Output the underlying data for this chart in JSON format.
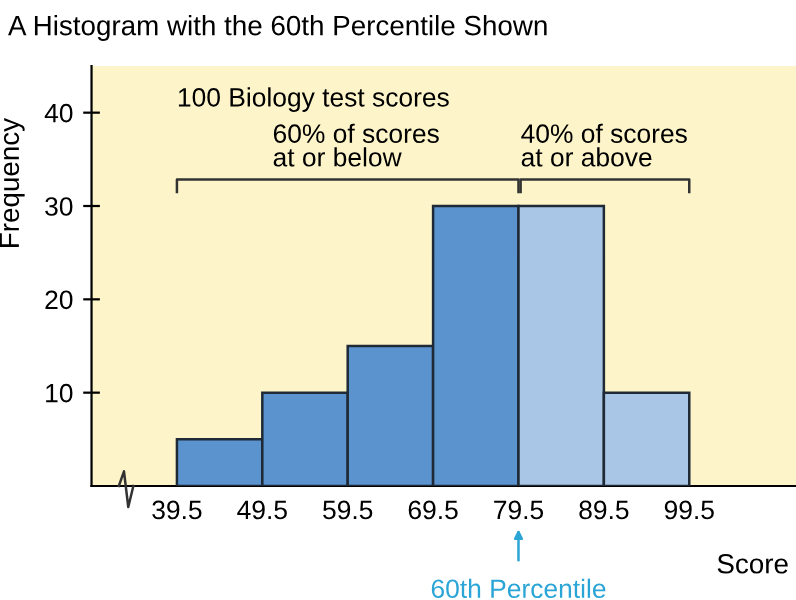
{
  "chart_data": {
    "type": "histogram",
    "title": "A Histogram with the 60th Percentile Shown",
    "xlabel": "Score",
    "ylabel": "Frequency",
    "bins": [
      39.5,
      49.5,
      59.5,
      69.5,
      79.5,
      89.5,
      99.5
    ],
    "values": [
      5,
      10,
      15,
      30,
      30,
      10
    ],
    "colors": [
      "#5b93cf",
      "#5b93cf",
      "#5b93cf",
      "#5b93cf",
      "#a9c6e6",
      "#a9c6e6"
    ],
    "xlim": [
      29.5,
      112
    ],
    "xticks": [
      39.5,
      49.5,
      59.5,
      69.5,
      79.5,
      89.5,
      99.5
    ],
    "ylim": [
      0,
      45
    ],
    "yticks": [
      10,
      20,
      30,
      40
    ],
    "annotations": [
      "100 Biology test scores",
      "60% of scores\nat or below",
      "40% of scores\nat or above",
      "60th Percentile"
    ],
    "grid": false
  }
}
